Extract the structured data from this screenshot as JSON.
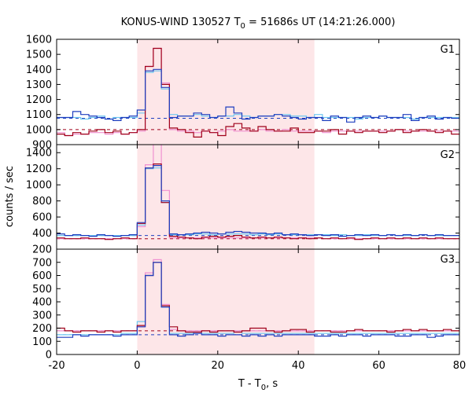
{
  "chart_data": {
    "type": "line",
    "title": {
      "prefix": "KONUS-WIND 130527 T",
      "sub": "0",
      "suffix": " = 51686s UT (14:21:26.000)"
    },
    "xlabel": {
      "prefix": "T - T",
      "sub": "0",
      "suffix": ", s"
    },
    "ylabel": "counts / sec",
    "xlim": [
      -20,
      80
    ],
    "x_ticks": [
      -20,
      0,
      20,
      40,
      60,
      80
    ],
    "highlight": {
      "x_start": 0,
      "x_end": 44,
      "color": "#fde6e8"
    },
    "bin_edges": [
      -20,
      -18,
      -16,
      -14,
      -12,
      -10,
      -8,
      -6,
      -4,
      -2,
      0,
      2,
      4,
      6,
      8,
      10,
      12,
      14,
      16,
      18,
      20,
      22,
      24,
      26,
      28,
      30,
      32,
      34,
      36,
      38,
      40,
      42,
      44,
      46,
      48,
      50,
      52,
      54,
      56,
      58,
      60,
      62,
      64,
      66,
      68,
      70,
      72,
      74,
      76,
      78,
      80
    ],
    "colors": {
      "blue": "#1f3fbf",
      "red": "#a0001a",
      "cyan": "#6fc8f0",
      "pink": "#f090d0"
    },
    "panels": [
      {
        "label": "G1",
        "ylim": [
          900,
          1600
        ],
        "yticks": [
          900,
          1000,
          1100,
          1200,
          1300,
          1400,
          1500,
          1600
        ],
        "background_levels": [
          {
            "color": "blue",
            "value": 1075
          },
          {
            "color": "red",
            "value": 1000
          }
        ],
        "series": [
          {
            "color": "blue",
            "values": [
              1080,
              1080,
              1120,
              1100,
              1090,
              1080,
              1070,
              1060,
              1080,
              1090,
              1130,
              1390,
              1400,
              1280,
              1080,
              1090,
              1090,
              1110,
              1100,
              1080,
              1090,
              1150,
              1110,
              1070,
              1080,
              1090,
              1090,
              1100,
              1090,
              1080,
              1070,
              1080,
              1080,
              1060,
              1090,
              1080,
              1050,
              1080,
              1090,
              1080,
              1090,
              1080,
              1080,
              1100,
              1060,
              1080,
              1090,
              1070,
              1080,
              1075
            ]
          },
          {
            "color": "red",
            "values": [
              970,
              960,
              980,
              970,
              990,
              1000,
              980,
              990,
              970,
              980,
              1000,
              1420,
              1540,
              1300,
              1010,
              1000,
              980,
              950,
              990,
              980,
              960,
              1020,
              1040,
              1010,
              990,
              1020,
              1000,
              990,
              990,
              1010,
              980,
              980,
              990,
              990,
              1000,
              970,
              990,
              980,
              990,
              990,
              980,
              990,
              1000,
              980,
              990,
              1000,
              990,
              980,
              990,
              970
            ]
          },
          {
            "color": "cyan",
            "values": [
              1080,
              1080,
              1080,
              1070,
              1080,
              1090,
              1070,
              1080,
              1080,
              1080,
              1110,
              1380,
              1390,
              1270,
              1100,
              1090,
              1090,
              1100,
              1090,
              1080,
              1090,
              1090,
              1100,
              1090,
              1080,
              1090,
              1090,
              1100,
              1100,
              1090,
              1090,
              1080,
              1100,
              1080,
              1080,
              1080,
              1080,
              1070,
              1080,
              1080,
              1090,
              1080,
              1080,
              1080,
              1070,
              1080,
              1080,
              1080,
              1080,
              1080
            ]
          },
          {
            "color": "pink",
            "values": [
              980,
              960,
              970,
              970,
              980,
              980,
              970,
              980,
              970,
              980,
              990,
              1420,
              1540,
              1310,
              1000,
              990,
              990,
              980,
              990,
              980,
              990,
              1000,
              990,
              990,
              990,
              1000,
              990,
              990,
              1000,
              990,
              990,
              990,
              990,
              980,
              990,
              990,
              990,
              990,
              990,
              990,
              990,
              990,
              1000,
              990,
              990,
              990,
              990,
              990,
              990,
              990
            ]
          }
        ]
      },
      {
        "label": "G2",
        "ylim": [
          200,
          1500
        ],
        "yticks": [
          200,
          400,
          600,
          800,
          1000,
          1200,
          1400
        ],
        "background_levels": [
          {
            "color": "blue",
            "value": 370
          },
          {
            "color": "red",
            "value": 330
          }
        ],
        "series": [
          {
            "color": "blue",
            "values": [
              390,
              370,
              380,
              370,
              360,
              380,
              370,
              360,
              370,
              380,
              530,
              1210,
              1240,
              800,
              390,
              380,
              390,
              400,
              410,
              400,
              390,
              410,
              420,
              410,
              400,
              400,
              390,
              400,
              380,
              390,
              380,
              370,
              380,
              370,
              380,
              360,
              370,
              380,
              370,
              380,
              370,
              380,
              370,
              380,
              370,
              380,
              370,
              380,
              370,
              370
            ]
          },
          {
            "color": "red",
            "values": [
              340,
              330,
              330,
              340,
              330,
              330,
              320,
              330,
              340,
              330,
              520,
              1210,
              1260,
              780,
              360,
              350,
              340,
              330,
              350,
              360,
              350,
              360,
              370,
              350,
              340,
              350,
              340,
              350,
              340,
              330,
              340,
              330,
              340,
              330,
              340,
              330,
              340,
              320,
              330,
              340,
              330,
              340,
              330,
              340,
              330,
              340,
              330,
              340,
              330,
              330
            ]
          },
          {
            "color": "cyan",
            "values": [
              370,
              370,
              370,
              370,
              370,
              370,
              370,
              370,
              370,
              370,
              500,
              1200,
              1210,
              780,
              380,
              380,
              380,
              390,
              390,
              380,
              390,
              390,
              390,
              390,
              380,
              390,
              380,
              390,
              380,
              380,
              380,
              380,
              380,
              380,
              370,
              380,
              370,
              370,
              380,
              370,
              370,
              380,
              370,
              370,
              370,
              380,
              370,
              370,
              370,
              370
            ]
          },
          {
            "color": "pink",
            "values": [
              330,
              330,
              330,
              330,
              330,
              330,
              330,
              330,
              330,
              330,
              480,
              1250,
              1510,
              930,
              340,
              340,
              340,
              340,
              340,
              340,
              340,
              340,
              340,
              340,
              340,
              340,
              340,
              340,
              340,
              340,
              340,
              340,
              340,
              330,
              330,
              330,
              330,
              330,
              330,
              330,
              330,
              330,
              330,
              330,
              330,
              330,
              330,
              330,
              330,
              330
            ]
          }
        ]
      },
      {
        "label": "G3",
        "ylim": [
          0,
          800
        ],
        "yticks": [
          0,
          100,
          200,
          300,
          400,
          500,
          600,
          700
        ],
        "background_levels": [
          {
            "color": "blue",
            "value": 150
          },
          {
            "color": "red",
            "value": 180
          }
        ],
        "series": [
          {
            "color": "blue",
            "values": [
              130,
              130,
              150,
              140,
              150,
              150,
              150,
              140,
              150,
              150,
              210,
              600,
              700,
              360,
              150,
              140,
              150,
              160,
              150,
              150,
              140,
              150,
              150,
              140,
              150,
              140,
              150,
              140,
              150,
              150,
              150,
              150,
              140,
              140,
              150,
              140,
              150,
              150,
              140,
              150,
              150,
              150,
              140,
              140,
              150,
              150,
              130,
              140,
              150,
              150
            ]
          },
          {
            "color": "red",
            "values": [
              200,
              180,
              170,
              180,
              180,
              170,
              180,
              170,
              180,
              180,
              220,
              600,
              700,
              370,
              210,
              180,
              170,
              170,
              180,
              170,
              180,
              180,
              170,
              180,
              200,
              200,
              180,
              170,
              180,
              190,
              190,
              170,
              180,
              180,
              170,
              170,
              180,
              190,
              180,
              180,
              180,
              170,
              180,
              190,
              180,
              190,
              180,
              180,
              190,
              180
            ]
          },
          {
            "color": "cyan",
            "values": [
              150,
              150,
              150,
              150,
              150,
              150,
              150,
              150,
              160,
              160,
              250,
              600,
              700,
              360,
              160,
              160,
              160,
              170,
              160,
              160,
              160,
              160,
              170,
              160,
              160,
              160,
              160,
              160,
              160,
              160,
              160,
              160,
              160,
              160,
              160,
              160,
              160,
              160,
              160,
              160,
              160,
              160,
              160,
              160,
              160,
              160,
              160,
              160,
              160,
              160
            ]
          },
          {
            "color": "pink",
            "values": [
              180,
              180,
              180,
              180,
              180,
              180,
              180,
              180,
              180,
              180,
              210,
              620,
              720,
              380,
              190,
              180,
              180,
              180,
              180,
              180,
              180,
              180,
              180,
              180,
              180,
              180,
              180,
              180,
              180,
              180,
              180,
              180,
              180,
              180,
              180,
              180,
              180,
              180,
              180,
              180,
              180,
              180,
              180,
              180,
              180,
              180,
              180,
              180,
              180,
              180
            ]
          }
        ]
      }
    ]
  }
}
